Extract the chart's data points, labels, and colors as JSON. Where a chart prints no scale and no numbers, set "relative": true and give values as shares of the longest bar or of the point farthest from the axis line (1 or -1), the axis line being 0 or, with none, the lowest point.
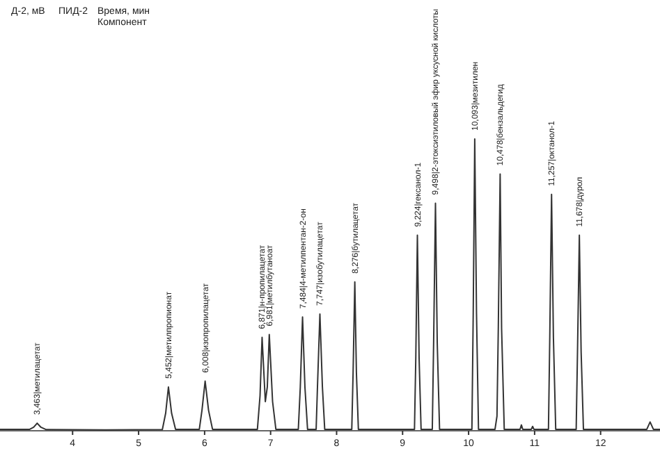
{
  "chart_data": {
    "type": "line",
    "relative": true,
    "xlim": [
      2.9,
      12.9
    ],
    "xticks": [
      4,
      5,
      6,
      7,
      8,
      9,
      10,
      11,
      12
    ],
    "grid": false,
    "marker": "none",
    "line_style": "solid",
    "annotations": [
      "Д-2, мВ",
      "ПИД-2",
      "Время, мин",
      "Компонент",
      {
        "text": "3,463|метилацетат",
        "x": 3.463,
        "y": 0.026
      },
      {
        "text": "5,452|метилпропионат",
        "x": 5.452,
        "y": 0.15
      },
      {
        "text": "6,008|изопропилацетат",
        "x": 6.008,
        "y": 0.17
      },
      {
        "text": "6,871|н-пропилацетат",
        "x": 6.871,
        "y": 0.32
      },
      {
        "text": "6,981|метилбутаноат",
        "x": 6.98,
        "y": 0.33
      },
      {
        "text": "7,484|4-метилпентан-2-он",
        "x": 7.484,
        "y": 0.39
      },
      {
        "text": "7,747|изобутилацетат",
        "x": 7.747,
        "y": 0.4
      },
      {
        "text": "8,276|бутилацетат",
        "x": 8.276,
        "y": 0.51
      },
      {
        "text": "9,224|гексанол-1",
        "x": 9.224,
        "y": 0.67
      },
      {
        "text": "9,498|2-этоксиэтиловый эфир уксусной кислоты",
        "x": 9.498,
        "y": 0.78
      },
      {
        "text": "10,093|мезитилен",
        "x": 10.093,
        "y": 1
      },
      {
        "text": "10,478|бензальдегид",
        "x": 10.478,
        "y": 0.88
      },
      {
        "text": "11,257|октанол-1",
        "x": 11.257,
        "y": 0.81
      },
      {
        "text": "11,678|дурол",
        "x": 11.678,
        "y": 0.67
      }
    ],
    "series": [
      {
        "color": "#333333",
        "x": [
          2.9,
          3.35,
          3.41,
          3.463,
          3.52,
          3.6,
          4.5,
          5.36,
          5.41,
          5.452,
          5.5,
          5.56,
          5.92,
          5.96,
          6.008,
          6.06,
          6.12,
          6.8,
          6.84,
          6.871,
          6.92,
          6.95,
          6.98,
          7.03,
          7.08,
          7.42,
          7.45,
          7.484,
          7.52,
          7.56,
          7.69,
          7.71,
          7.747,
          7.785,
          7.82,
          8.23,
          8.25,
          8.276,
          8.3,
          8.33,
          9.18,
          9.2,
          9.224,
          9.25,
          9.28,
          9.45,
          9.47,
          9.498,
          9.525,
          9.56,
          10.05,
          10.07,
          10.093,
          10.12,
          10.15,
          10.4,
          10.43,
          10.45,
          10.478,
          10.5,
          10.54,
          10.78,
          10.8,
          10.82,
          10.95,
          10.97,
          10.99,
          11.21,
          11.23,
          11.257,
          11.285,
          11.32,
          11.63,
          11.65,
          11.678,
          11.705,
          11.74,
          12.7,
          12.75,
          12.8,
          12.9
        ],
        "values": [
          0.005,
          0.005,
          0.012,
          0.026,
          0.012,
          0.004,
          0.003,
          0.004,
          0.06,
          0.15,
          0.06,
          0.005,
          0.005,
          0.07,
          0.17,
          0.07,
          0.005,
          0.005,
          0.12,
          0.32,
          0.1,
          0.15,
          0.33,
          0.1,
          0.005,
          0.005,
          0.15,
          0.39,
          0.15,
          0.005,
          0.005,
          0.15,
          0.4,
          0.15,
          0.005,
          0.005,
          0.2,
          0.51,
          0.2,
          0.005,
          0.005,
          0.25,
          0.67,
          0.25,
          0.005,
          0.005,
          0.3,
          0.78,
          0.3,
          0.005,
          0.005,
          0.4,
          1,
          0.4,
          0.005,
          0.005,
          0.05,
          0.35,
          0.88,
          0.35,
          0.005,
          0.005,
          0.02,
          0.005,
          0.005,
          0.015,
          0.005,
          0.005,
          0.32,
          0.81,
          0.32,
          0.005,
          0.005,
          0.27,
          0.67,
          0.27,
          0.005,
          0.005,
          0.03,
          0.005,
          0.005
        ]
      }
    ]
  }
}
